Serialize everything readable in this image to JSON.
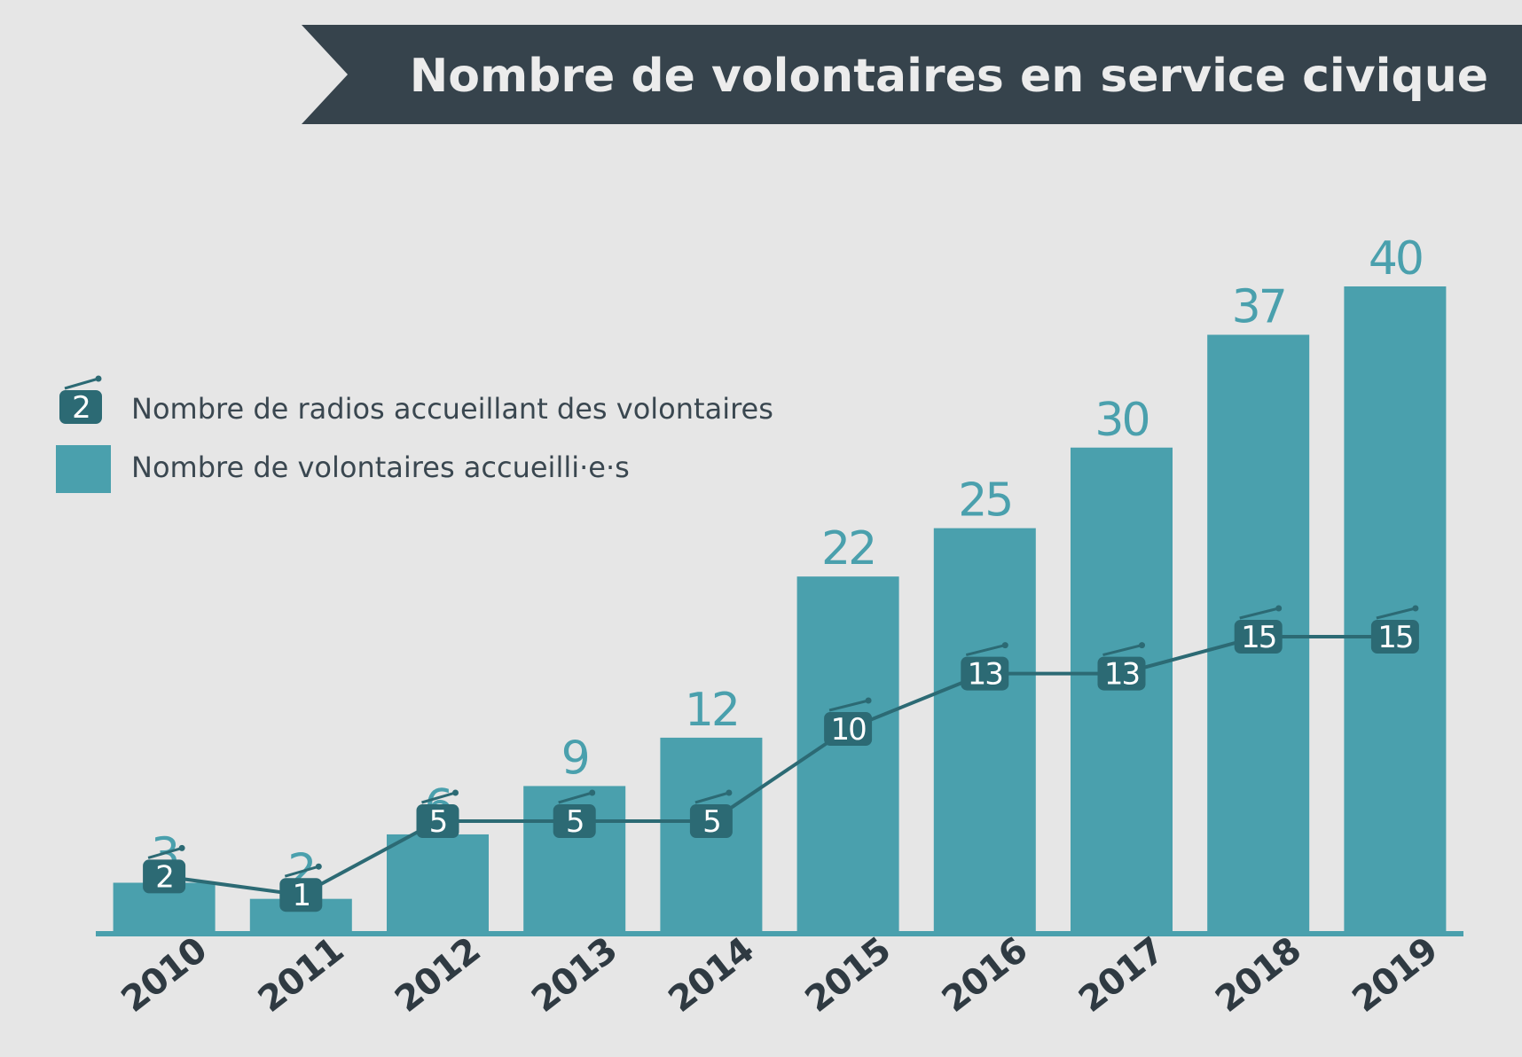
{
  "chart_data": {
    "type": "bar",
    "title": "Nombre de volontaires en service civique",
    "categories": [
      "2010",
      "2011",
      "2012",
      "2013",
      "2014",
      "2015",
      "2016",
      "2017",
      "2018",
      "2019"
    ],
    "series": [
      {
        "name": "Nombre de volontaires accueilli·e·s",
        "type": "bar",
        "values": [
          3,
          2,
          6,
          9,
          12,
          22,
          25,
          30,
          37,
          40
        ],
        "color": "#4aa0ad"
      },
      {
        "name": "Nombre de radios accueillant des volontaires",
        "type": "line",
        "values": [
          2,
          1,
          5,
          5,
          5,
          10,
          13,
          13,
          15,
          15
        ],
        "color": "#2c6a74"
      }
    ],
    "legend": {
      "position": "left",
      "sample_radio_value": "2"
    },
    "xlabel": "",
    "ylabel": "",
    "ylim": [
      0,
      40
    ]
  }
}
